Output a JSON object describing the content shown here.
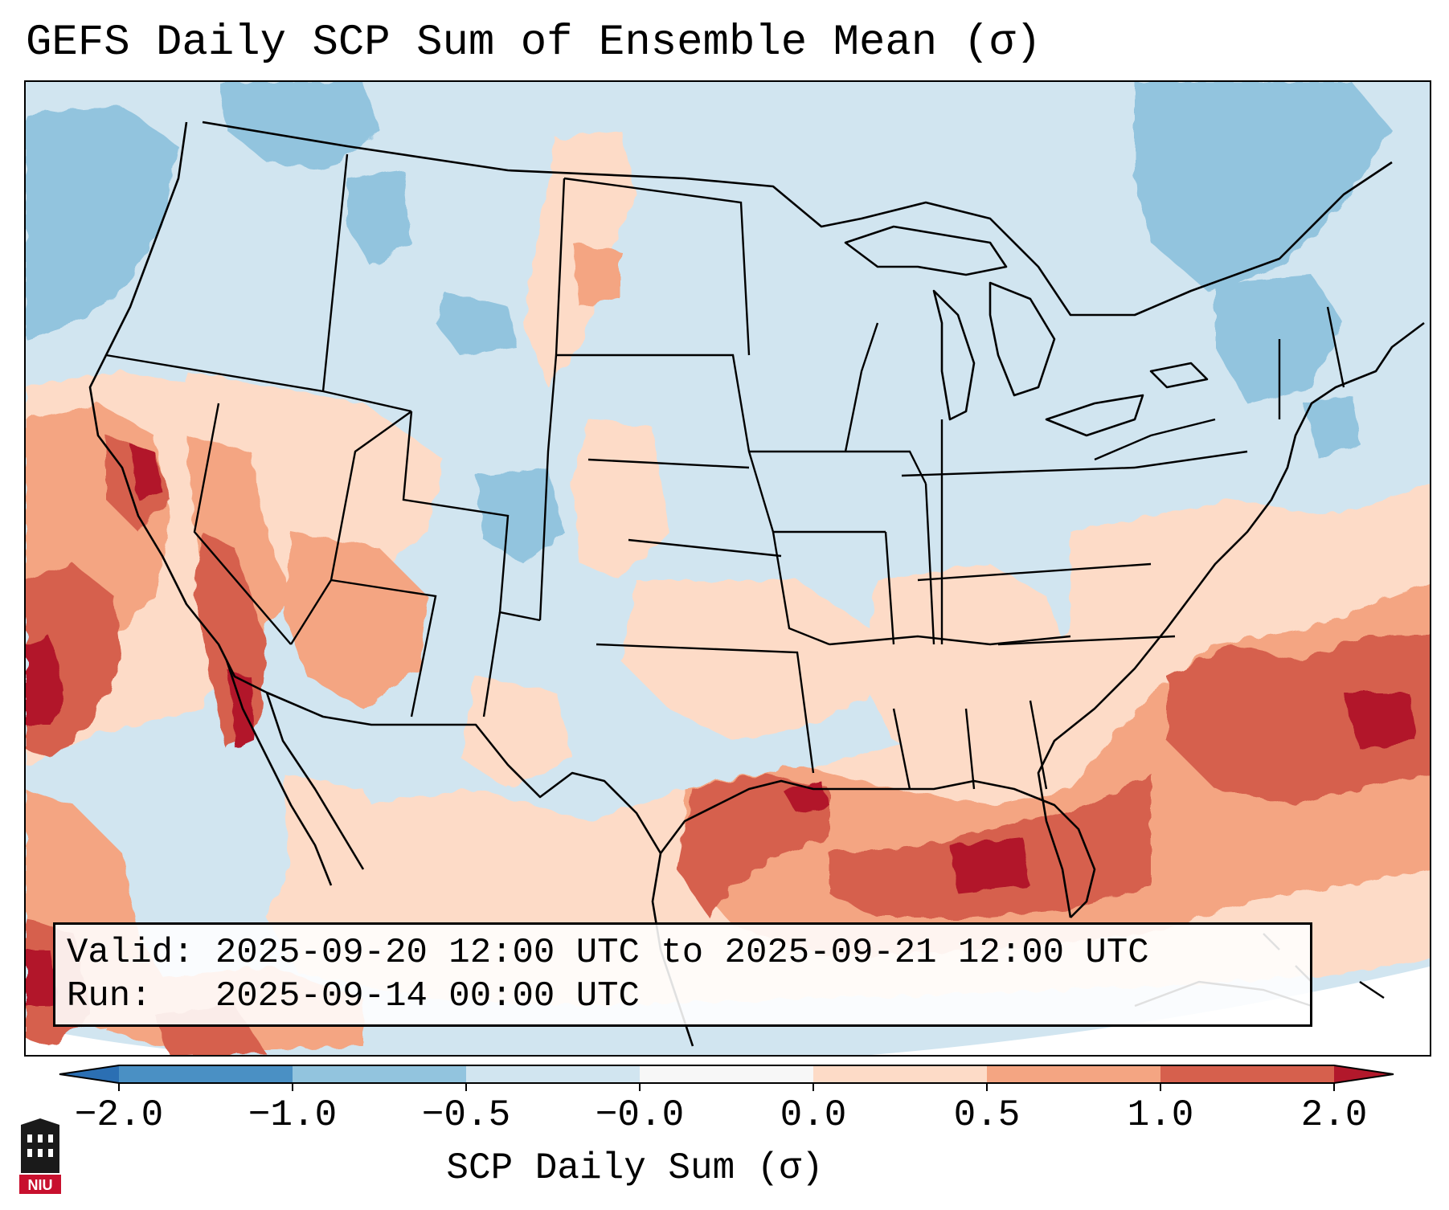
{
  "title": "GEFS Daily SCP Sum of Ensemble Mean (σ)",
  "info": {
    "valid_label": "Valid:",
    "valid_value": "2025-09-20 12:00 UTC to 2025-09-21 12:00 UTC",
    "run_label": "Run:",
    "run_value": "2025-09-14 00:00 UTC"
  },
  "colorbar": {
    "label": "SCP Daily Sum (σ)",
    "ticks": [
      "−2.0",
      "−1.0",
      "−0.5",
      "−0.0",
      "0.0",
      "0.5",
      "1.0",
      "2.0"
    ],
    "bins": [
      {
        "range": "< -2.0",
        "color": "#2b6fb3"
      },
      {
        "range": "-2.0 to -1.0",
        "color": "#4a90c4"
      },
      {
        "range": "-1.0 to -0.5",
        "color": "#92c4de"
      },
      {
        "range": "-0.5 to -0.0",
        "color": "#d1e5f0"
      },
      {
        "range": "-0.0 to 0.0",
        "color": "#f7f7f7"
      },
      {
        "range": "0.0 to 0.5",
        "color": "#fddbc7"
      },
      {
        "range": "0.5 to 1.0",
        "color": "#f4a582"
      },
      {
        "range": "1.0 to 2.0",
        "color": "#d6604d"
      },
      {
        "range": "> 2.0",
        "color": "#b2182b"
      }
    ]
  },
  "map_regions": [
    {
      "name": "Gulf of Mexico / Texas coast",
      "category": "1.0 to 2.0"
    },
    {
      "name": "Southern California / Baja",
      "category": "1.0 to 2.0"
    },
    {
      "name": "Western Atlantic off Southeast coast",
      "category": "1.0 to 2.0"
    },
    {
      "name": "Southwest (Nevada, Arizona)",
      "category": "0.5 to 1.0"
    },
    {
      "name": "Southern Plains / Lower Mississippi Valley",
      "category": "0.0 to 0.5"
    },
    {
      "name": "Central and Northern Plains, Midwest, Northeast",
      "category": "-0.5 to -0.0"
    },
    {
      "name": "Pacific Northwest, Colorado, Quebec / Atlantic Canada",
      "category": "-1.0 to -0.5"
    }
  ],
  "logo": {
    "text": "NIU"
  }
}
